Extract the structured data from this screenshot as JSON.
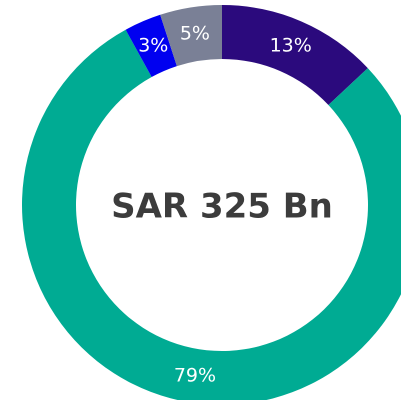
{
  "chart_data": {
    "type": "donut",
    "center_text": "SAR 325 Bn",
    "values": [
      13,
      79,
      3,
      5
    ],
    "value_labels": [
      "13%",
      "79%",
      "3%",
      "5%"
    ],
    "colors": [
      "#2b0a7d",
      "#00ab93",
      "#0000f0",
      "#7a8096"
    ]
  }
}
